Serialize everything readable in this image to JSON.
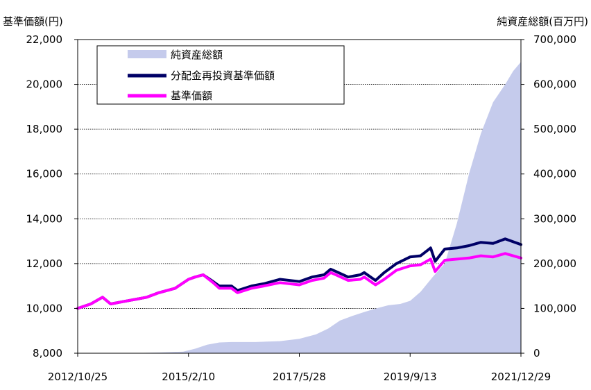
{
  "chart_data": {
    "type": "line",
    "left_axis_label": "基準価額(円)",
    "right_axis_label": "純資産総額(百万円)",
    "y_left": {
      "ylim": [
        8000,
        22000
      ],
      "ticks": [
        8000,
        10000,
        12000,
        14000,
        16000,
        18000,
        20000,
        22000
      ],
      "tick_labels": [
        "8,000",
        "10,000",
        "12,000",
        "14,000",
        "16,000",
        "18,000",
        "20,000",
        "22,000"
      ]
    },
    "y_right": {
      "ylim": [
        0,
        700000
      ],
      "ticks": [
        0,
        100000,
        200000,
        300000,
        400000,
        500000,
        600000,
        700000
      ],
      "tick_labels": [
        "0",
        "100,000",
        "200,000",
        "300,000",
        "400,000",
        "500,000",
        "600,000",
        "700,000"
      ]
    },
    "x_ticks": [
      "2012/10/25",
      "2015/2/10",
      "2017/5/28",
      "2019/9/13",
      "2021/12/29"
    ],
    "grid": true,
    "legend_position": "top-left",
    "colors": {
      "net_assets": "#c5cbec",
      "reinvested": "#000066",
      "nav": "#ff00ff"
    },
    "series": [
      {
        "name": "純資産総額",
        "kind": "area",
        "axis": "right",
        "x": [
          "2012/10/25",
          "2013/6/1",
          "2014/1/1",
          "2014/7/1",
          "2015/1/1",
          "2015/4/1",
          "2015/7/1",
          "2015/10/1",
          "2016/1/1",
          "2016/7/1",
          "2017/1/1",
          "2017/5/28",
          "2017/10/1",
          "2018/1/1",
          "2018/4/1",
          "2018/7/1",
          "2018/10/1",
          "2019/1/1",
          "2019/4/1",
          "2019/7/1",
          "2019/9/13",
          "2019/12/1",
          "2020/3/1",
          "2020/6/1",
          "2020/9/1",
          "2020/12/1",
          "2021/3/1",
          "2021/6/1",
          "2021/9/1",
          "2021/11/1",
          "2021/12/29"
        ],
        "values": [
          0,
          0,
          500,
          1500,
          3500,
          10000,
          19000,
          24000,
          25000,
          25000,
          27000,
          32000,
          42000,
          55000,
          73000,
          83000,
          92000,
          100000,
          107000,
          110000,
          117000,
          137000,
          170000,
          200000,
          290000,
          400000,
          490000,
          560000,
          600000,
          630000,
          650000
        ]
      },
      {
        "name": "分配金再投資基準価額",
        "kind": "line",
        "axis": "left",
        "x": [
          "2012/10/25",
          "2013/2/1",
          "2013/5/1",
          "2013/7/1",
          "2013/10/1",
          "2014/1/1",
          "2014/4/1",
          "2014/7/1",
          "2014/11/1",
          "2015/2/10",
          "2015/4/1",
          "2015/6/1",
          "2015/8/15",
          "2015/10/1",
          "2016/1/1",
          "2016/2/15",
          "2016/6/1",
          "2016/9/1",
          "2017/1/1",
          "2017/5/28",
          "2017/9/1",
          "2017/12/1",
          "2018/1/20",
          "2018/3/1",
          "2018/6/1",
          "2018/9/1",
          "2018/10/1",
          "2018/12/25",
          "2019/3/1",
          "2019/6/1",
          "2019/9/13",
          "2019/12/1",
          "2020/2/15",
          "2020/3/20",
          "2020/6/1",
          "2020/9/1",
          "2020/12/1",
          "2021/3/1",
          "2021/6/1",
          "2021/9/1",
          "2021/12/29"
        ],
        "values": [
          10000,
          10200,
          10500,
          10200,
          10300,
          10400,
          10500,
          10700,
          10900,
          11300,
          11400,
          11500,
          11200,
          11000,
          11000,
          10800,
          11000,
          11100,
          11300,
          11200,
          11400,
          11500,
          11750,
          11650,
          11400,
          11500,
          11600,
          11250,
          11600,
          12000,
          12300,
          12350,
          12700,
          12100,
          12650,
          12700,
          12800,
          12950,
          12900,
          13100,
          12850
        ]
      },
      {
        "name": "基準価額",
        "kind": "line",
        "axis": "left",
        "x": [
          "2012/10/25",
          "2013/2/1",
          "2013/5/1",
          "2013/7/1",
          "2013/10/1",
          "2014/1/1",
          "2014/4/1",
          "2014/7/1",
          "2014/11/1",
          "2015/2/10",
          "2015/4/1",
          "2015/6/1",
          "2015/8/15",
          "2015/10/1",
          "2016/1/1",
          "2016/2/15",
          "2016/6/1",
          "2016/9/1",
          "2017/1/1",
          "2017/5/28",
          "2017/9/1",
          "2017/12/1",
          "2018/1/20",
          "2018/3/1",
          "2018/6/1",
          "2018/9/1",
          "2018/10/1",
          "2018/12/25",
          "2019/3/1",
          "2019/6/1",
          "2019/9/13",
          "2019/12/1",
          "2020/2/15",
          "2020/3/20",
          "2020/6/1",
          "2020/9/1",
          "2020/12/1",
          "2021/3/1",
          "2021/6/1",
          "2021/9/1",
          "2021/12/29"
        ],
        "values": [
          10000,
          10200,
          10500,
          10200,
          10300,
          10400,
          10500,
          10700,
          10900,
          11300,
          11400,
          11500,
          11150,
          10900,
          10900,
          10700,
          10900,
          11000,
          11150,
          11050,
          11250,
          11350,
          11600,
          11500,
          11250,
          11300,
          11400,
          11050,
          11300,
          11700,
          11900,
          11950,
          12200,
          11650,
          12150,
          12200,
          12250,
          12350,
          12300,
          12450,
          12250
        ]
      }
    ]
  }
}
